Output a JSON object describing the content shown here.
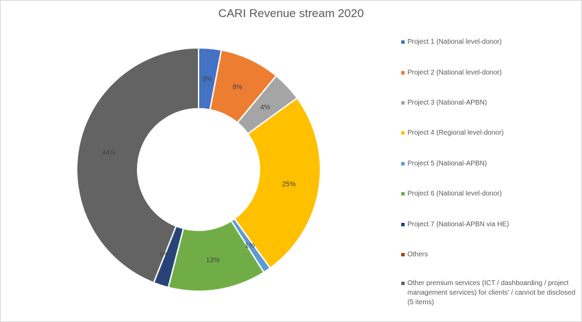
{
  "chart_data": {
    "type": "pie",
    "variant": "doughnut",
    "title": "CARI Revenue stream 2020",
    "legend_position": "right",
    "series": [
      {
        "name": "Project 1 (National level-donor)",
        "value": 3,
        "label": "3%",
        "color": "#4472C4"
      },
      {
        "name": "Project 2 (National level-donor)",
        "value": 8,
        "label": "8%",
        "color": "#ED7D31"
      },
      {
        "name": "Project 3 (National-APBN)",
        "value": 4,
        "label": "4%",
        "color": "#A5A5A5"
      },
      {
        "name": "Project 4 (Regional level-donor)",
        "value": 25,
        "label": "25%",
        "color": "#FFC000"
      },
      {
        "name": "Project 5 (National-APBN)",
        "value": 1,
        "label": "1%",
        "color": "#5B9BD5"
      },
      {
        "name": "Project 6 (National level-donor)",
        "value": 13,
        "label": "13%",
        "color": "#70AD47"
      },
      {
        "name": "Project 7 (National-APBN via HE)",
        "value": 2,
        "label": "",
        "color": "#264478"
      },
      {
        "name": "Others",
        "value": 0,
        "label": "0%",
        "color": "#9E480E"
      },
      {
        "name": "Other premium services (ICT / dashboarding / project management services) for clients' / cannot be disclosed (5 items)",
        "value": 44,
        "label": "44%",
        "color": "#636363"
      }
    ]
  }
}
